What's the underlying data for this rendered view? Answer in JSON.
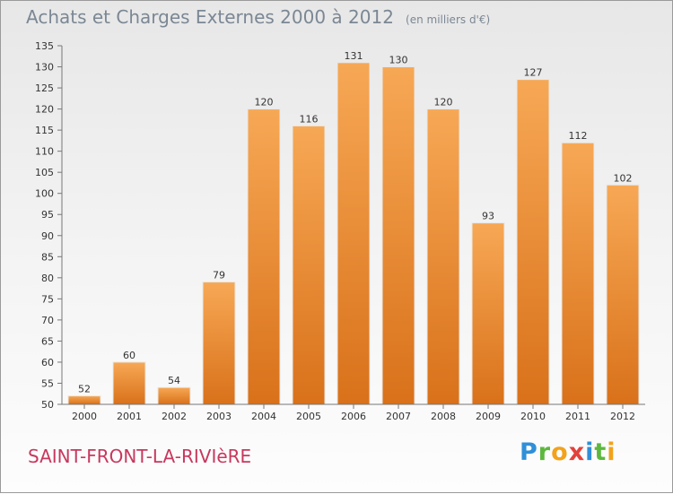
{
  "chart_data": {
    "type": "bar",
    "title": "Achats et Charges Externes 2000 à 2012",
    "subtitle": "(en milliers d'€)",
    "categories": [
      "2000",
      "2001",
      "2002",
      "2003",
      "2004",
      "2005",
      "2006",
      "2007",
      "2008",
      "2009",
      "2010",
      "2011",
      "2012"
    ],
    "values": [
      52,
      60,
      54,
      79,
      120,
      116,
      131,
      130,
      120,
      93,
      127,
      112,
      102
    ],
    "ylim": [
      50,
      135
    ],
    "yticks": [
      50,
      55,
      60,
      65,
      70,
      75,
      80,
      85,
      90,
      95,
      100,
      105,
      110,
      115,
      120,
      125,
      130,
      135
    ],
    "grid": false,
    "bar_color": "#f0923a"
  },
  "footer": {
    "commune": "SAINT-FRONT-LA-RIVIèRE",
    "brand_letters": [
      {
        "ch": "P",
        "color": "#2f8fd8"
      },
      {
        "ch": "r",
        "color": "#5cb83d"
      },
      {
        "ch": "o",
        "color": "#f2a21b"
      },
      {
        "ch": "x",
        "color": "#e3413b"
      },
      {
        "ch": "i",
        "color": "#2f8fd8"
      },
      {
        "ch": "t",
        "color": "#5cb83d"
      },
      {
        "ch": "i",
        "color": "#f2a21b"
      }
    ]
  }
}
